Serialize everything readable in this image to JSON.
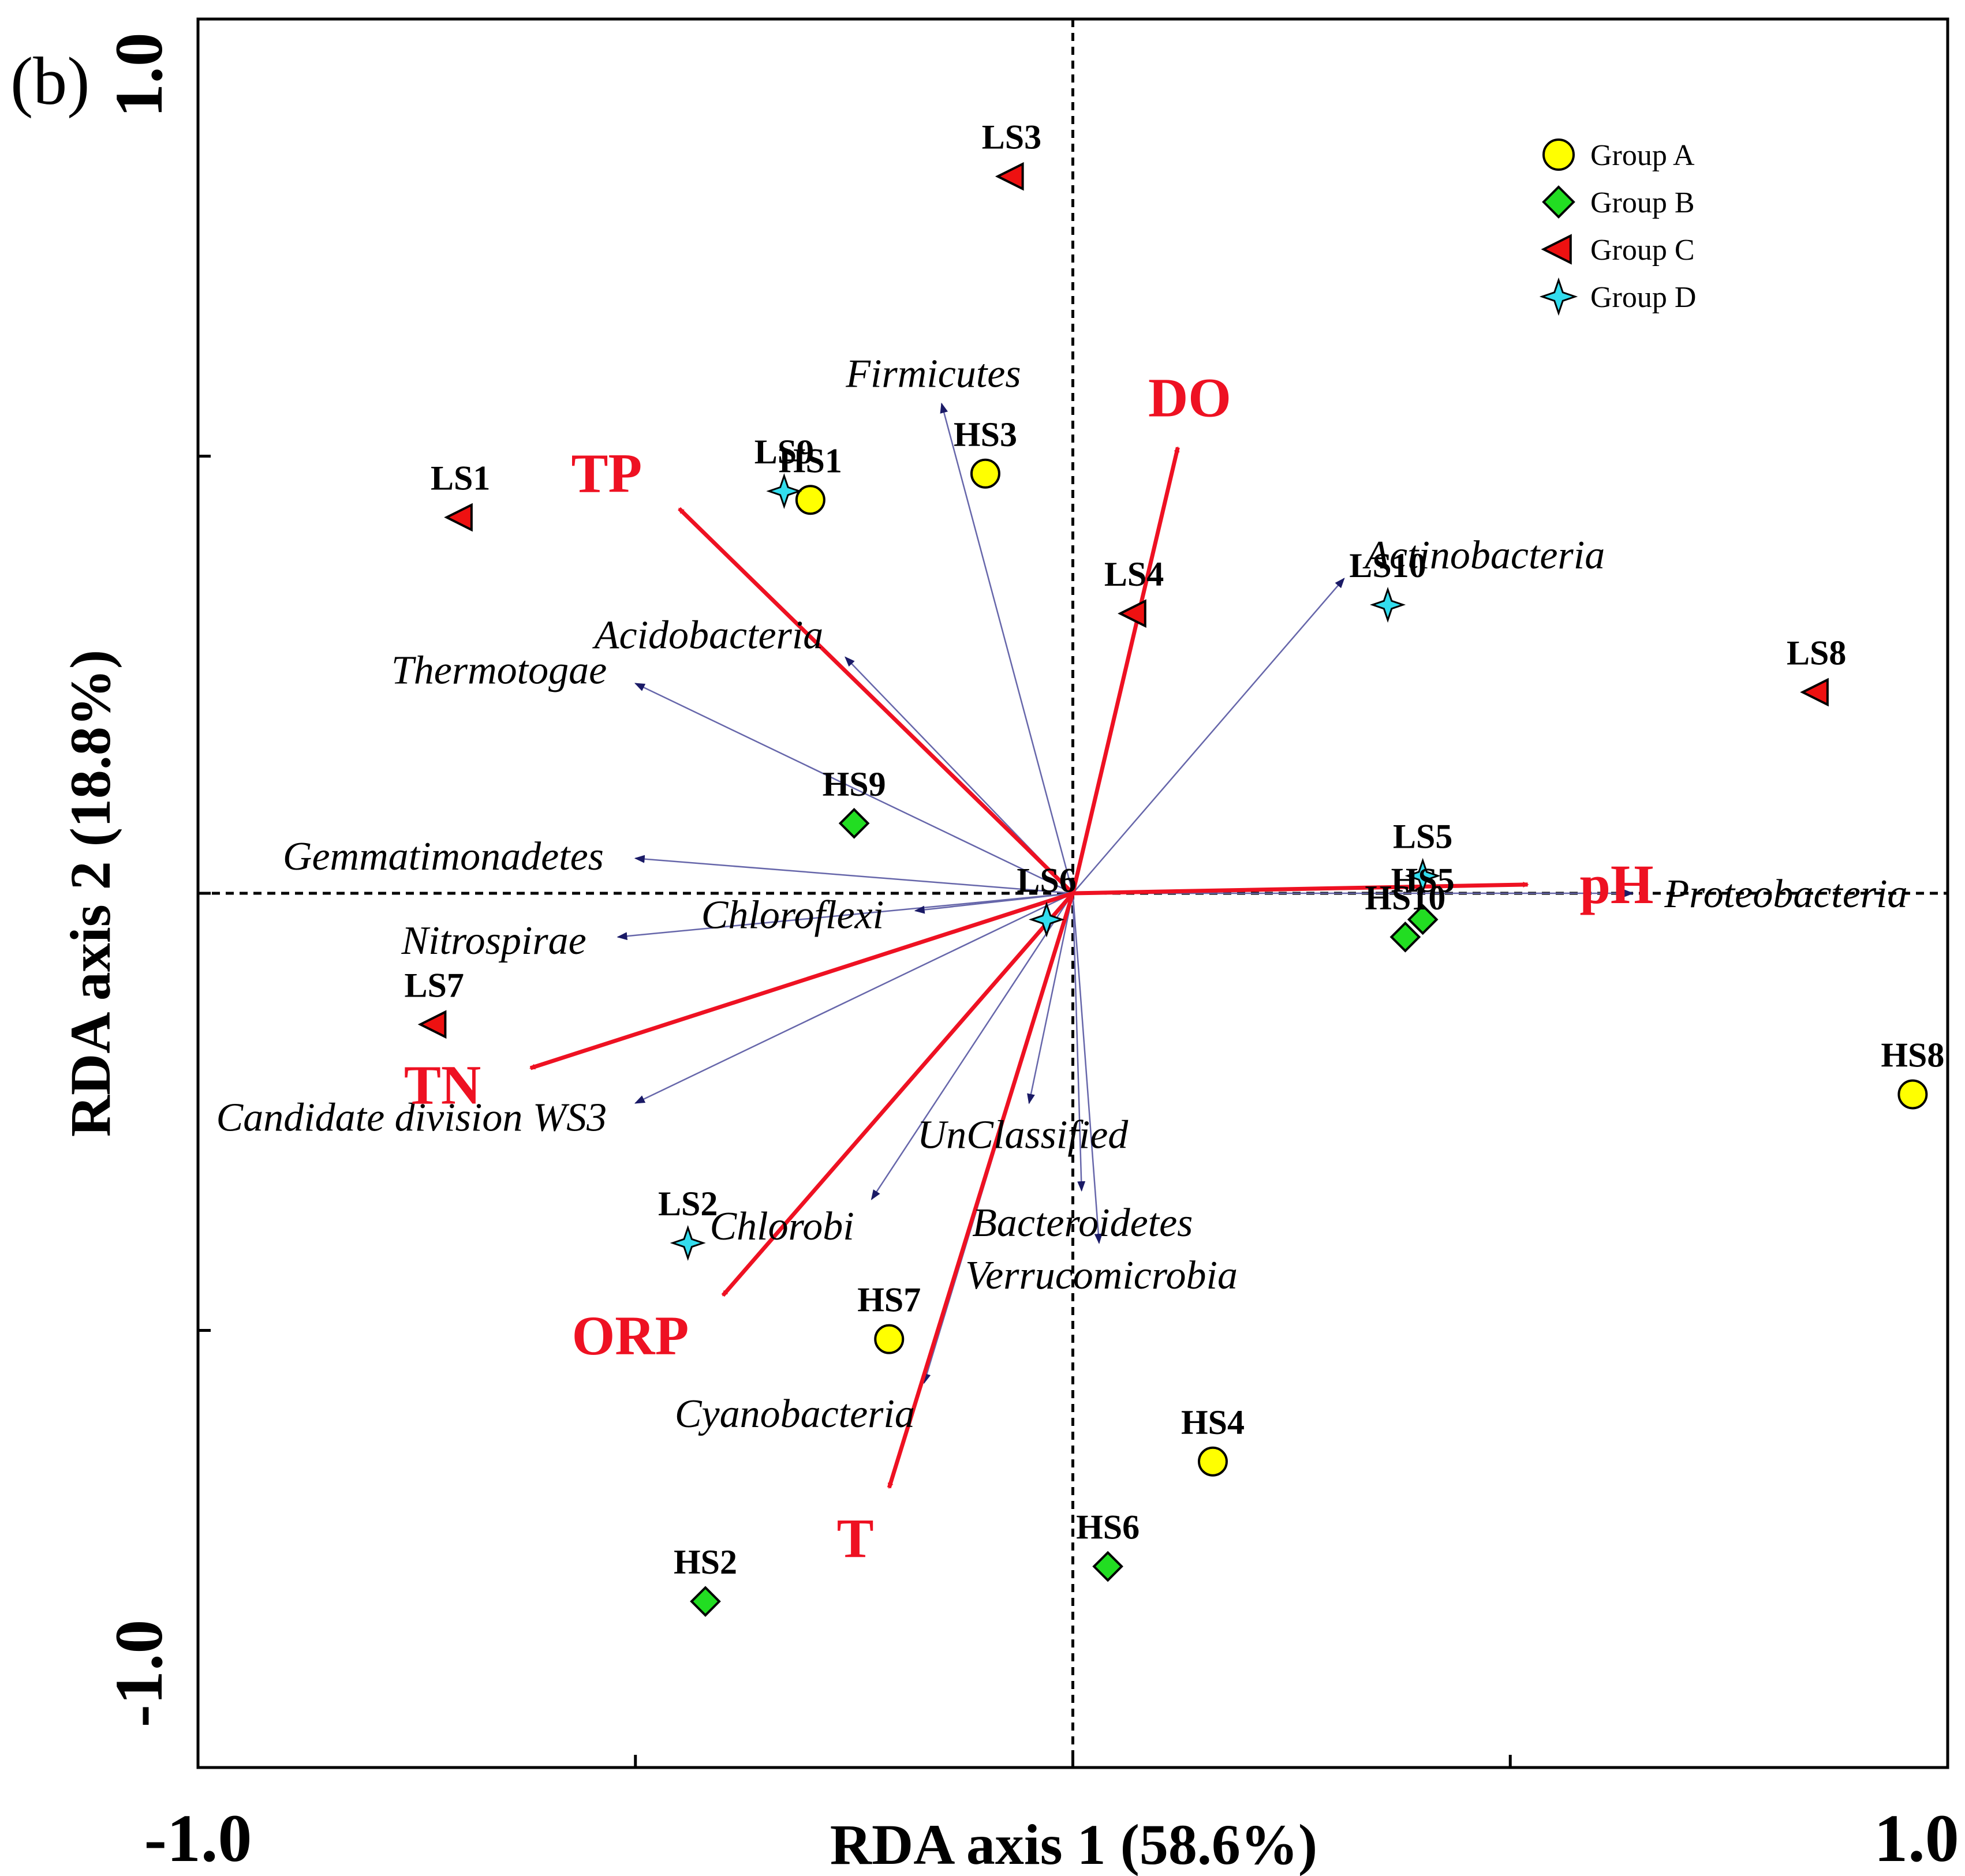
{
  "panel_label": "(b)",
  "chart_data": {
    "type": "scatter",
    "title": "",
    "xlabel": "RDA axis 1 (58.6%)",
    "ylabel": "RDA axis 2 (18.8%)",
    "xlim": [
      -1.0,
      1.0
    ],
    "ylim": [
      -1.0,
      1.0
    ],
    "xtick_labels": [
      {
        "value": -1.0,
        "label": "-1.0"
      },
      {
        "value": 1.0,
        "label": "1.0"
      }
    ],
    "ytick_labels": [
      {
        "value": 1.0,
        "label": "1.0"
      },
      {
        "value": -1.0,
        "label": "-1.0"
      }
    ],
    "minor_ticks": [
      -0.5,
      0.0,
      0.5
    ],
    "zero_lines": true,
    "legend": {
      "position": "top-right",
      "entries": [
        {
          "group": "A",
          "label": "Group A",
          "marker": "circle",
          "color": "#ffff00"
        },
        {
          "group": "B",
          "label": "Group B",
          "marker": "diamond",
          "color": "#22dd22"
        },
        {
          "group": "C",
          "label": "Group C",
          "marker": "triangle-left",
          "color": "#ee1111"
        },
        {
          "group": "D",
          "label": "Group D",
          "marker": "star4",
          "color": "#33ddee"
        }
      ]
    },
    "env_color": "#ee1122",
    "taxa_color": "#6666aa",
    "env_vectors": [
      {
        "name": "DO",
        "x": 0.12,
        "y": 0.51
      },
      {
        "name": "TP",
        "x": -0.45,
        "y": 0.44
      },
      {
        "name": "pH",
        "x": 0.52,
        "y": 0.01
      },
      {
        "name": "TN",
        "x": -0.62,
        "y": -0.2
      },
      {
        "name": "ORP",
        "x": -0.4,
        "y": -0.46
      },
      {
        "name": "T",
        "x": -0.21,
        "y": -0.68
      }
    ],
    "taxa_vectors": [
      {
        "name": "Firmicutes",
        "x": -0.15,
        "y": 0.56
      },
      {
        "name": "Actinobacteria",
        "x": 0.31,
        "y": 0.36
      },
      {
        "name": "Acidobacteria",
        "x": -0.26,
        "y": 0.27
      },
      {
        "name": "Thermotogae",
        "x": -0.5,
        "y": 0.24
      },
      {
        "name": "Gemmatimonadetes",
        "x": -0.5,
        "y": 0.04
      },
      {
        "name": "Nitrospirae",
        "x": -0.52,
        "y": -0.05
      },
      {
        "name": "Chloroflexi",
        "x": -0.18,
        "y": -0.02
      },
      {
        "name": "Candidate division WS3",
        "x": -0.5,
        "y": -0.24
      },
      {
        "name": "UnClassified",
        "x": -0.05,
        "y": -0.24
      },
      {
        "name": "Chlorobi",
        "x": -0.23,
        "y": -0.35
      },
      {
        "name": "Bacteroidetes",
        "x": 0.01,
        "y": -0.34
      },
      {
        "name": "Verrucomicrobia",
        "x": 0.03,
        "y": -0.4
      },
      {
        "name": "Cyanobacteria",
        "x": -0.17,
        "y": -0.56
      },
      {
        "name": "Proteobacteria",
        "x": 0.64,
        "y": 0.0
      }
    ],
    "samples": [
      {
        "name": "HS1",
        "group": "A",
        "x": -0.3,
        "y": 0.45
      },
      {
        "name": "HS3",
        "group": "A",
        "x": -0.1,
        "y": 0.48
      },
      {
        "name": "HS7",
        "group": "A",
        "x": -0.21,
        "y": -0.51
      },
      {
        "name": "HS4",
        "group": "A",
        "x": 0.16,
        "y": -0.65
      },
      {
        "name": "HS8",
        "group": "A",
        "x": 0.96,
        "y": -0.23
      },
      {
        "name": "HS9",
        "group": "B",
        "x": -0.25,
        "y": 0.08
      },
      {
        "name": "HS5",
        "group": "B",
        "x": 0.4,
        "y": -0.03
      },
      {
        "name": "HS10",
        "group": "B",
        "x": 0.38,
        "y": -0.05
      },
      {
        "name": "HS2",
        "group": "B",
        "x": -0.42,
        "y": -0.81
      },
      {
        "name": "HS6",
        "group": "B",
        "x": 0.04,
        "y": -0.77
      },
      {
        "name": "LS3",
        "group": "C",
        "x": -0.07,
        "y": 0.82
      },
      {
        "name": "LS1",
        "group": "C",
        "x": -0.7,
        "y": 0.43
      },
      {
        "name": "LS4",
        "group": "C",
        "x": 0.07,
        "y": 0.32
      },
      {
        "name": "LS8",
        "group": "C",
        "x": 0.85,
        "y": 0.23
      },
      {
        "name": "LS7",
        "group": "C",
        "x": -0.73,
        "y": -0.15
      },
      {
        "name": "LS9",
        "group": "D",
        "x": -0.33,
        "y": 0.46
      },
      {
        "name": "LS10",
        "group": "D",
        "x": 0.36,
        "y": 0.33
      },
      {
        "name": "LS5",
        "group": "D",
        "x": 0.4,
        "y": 0.02
      },
      {
        "name": "LS6",
        "group": "D",
        "x": -0.03,
        "y": -0.03
      },
      {
        "name": "LS2",
        "group": "D",
        "x": -0.44,
        "y": -0.4
      }
    ]
  }
}
